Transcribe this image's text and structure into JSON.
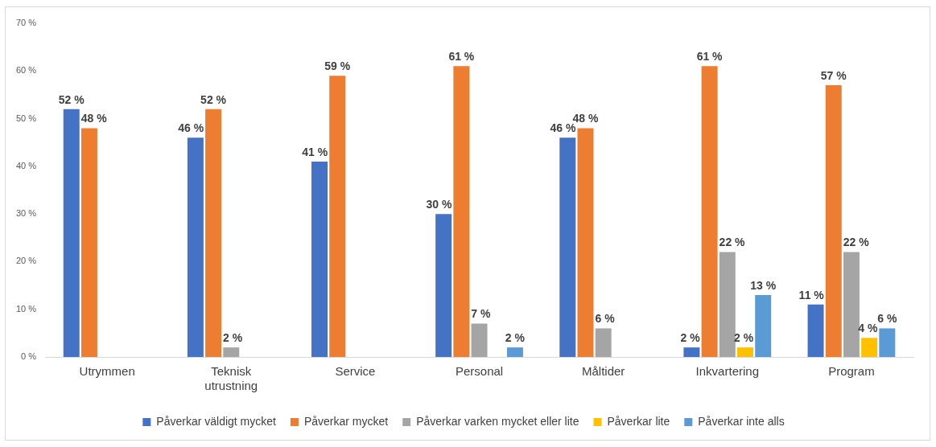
{
  "chart_data": {
    "type": "bar",
    "categories": [
      "Utrymmen",
      "Teknisk utrustning",
      "Service",
      "Personal",
      "Måltider",
      "Inkvartering",
      "Program"
    ],
    "ylim": [
      0,
      70
    ],
    "yticks": [
      {
        "value": 0,
        "label": "0 %"
      },
      {
        "value": 10,
        "label": "10 %"
      },
      {
        "value": 20,
        "label": "20 %"
      },
      {
        "value": 30,
        "label": "30 %"
      },
      {
        "value": 40,
        "label": "40 %"
      },
      {
        "value": 50,
        "label": "50 %"
      },
      {
        "value": 60,
        "label": "60 %"
      },
      {
        "value": 70,
        "label": "70 %"
      }
    ],
    "grid": false,
    "legend": "bottom",
    "series": [
      {
        "name": "Påverkar väldigt mycket",
        "color": "#4472c4",
        "values": [
          52,
          46,
          41,
          30,
          46,
          2,
          11
        ],
        "value_labels": [
          "52 %",
          "46 %",
          "41 %",
          "30 %",
          "46 %",
          "2 %",
          "11 %"
        ]
      },
      {
        "name": "Påverkar mycket",
        "color": "#ed7d31",
        "values": [
          48,
          52,
          59,
          61,
          48,
          61,
          57
        ],
        "value_labels": [
          "48 %",
          "52 %",
          "59 %",
          "61 %",
          "48 %",
          "61 %",
          "57 %"
        ]
      },
      {
        "name": "Påverkar varken mycket eller lite",
        "color": "#a5a5a5",
        "values": [
          null,
          2,
          null,
          7,
          6,
          22,
          22
        ],
        "value_labels": [
          null,
          "2 %",
          null,
          "7 %",
          "6 %",
          "22 %",
          "22 %"
        ]
      },
      {
        "name": "Påverkar lite",
        "color": "#ffc000",
        "values": [
          null,
          null,
          null,
          null,
          null,
          2,
          4
        ],
        "value_labels": [
          null,
          null,
          null,
          null,
          null,
          "2 %",
          "4 %"
        ]
      },
      {
        "name": "Påverkar inte alls",
        "color": "#5b9bd5",
        "values": [
          null,
          null,
          null,
          2,
          null,
          13,
          6
        ],
        "value_labels": [
          null,
          null,
          null,
          "2 %",
          null,
          "13 %",
          "6 %"
        ]
      }
    ]
  }
}
